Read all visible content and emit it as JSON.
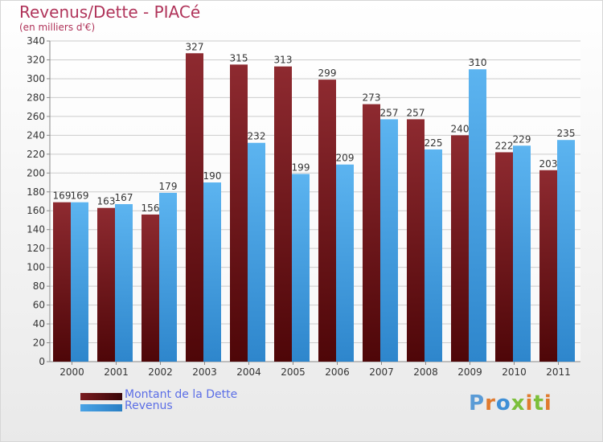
{
  "title": "Revenus/Dette - PIACé",
  "subtitle": "(en milliers d'€)",
  "colors": {
    "dette": "#7a1c20",
    "revenus": "#4aa3e6",
    "title": "#b0345a",
    "legend_text": "#5b6ee6"
  },
  "legend": {
    "dette": "Montant de la Dette",
    "revenus": "Revenus"
  },
  "logo": {
    "letters": [
      "P",
      "r",
      "o",
      "x",
      "i",
      "t",
      "i"
    ],
    "colors": [
      "#5a9bd6",
      "#e07a2e",
      "#3f8fd6",
      "#7cbf3a",
      "#e07a2e",
      "#7cbf3a",
      "#e07a2e"
    ]
  },
  "chart_data": {
    "type": "bar",
    "categories": [
      "2000",
      "2001",
      "2002",
      "2003",
      "2004",
      "2005",
      "2006",
      "2007",
      "2008",
      "2009",
      "2010",
      "2011"
    ],
    "series": [
      {
        "name": "Montant de la Dette",
        "values": [
          169,
          163,
          156,
          327,
          315,
          313,
          299,
          273,
          257,
          240,
          222,
          203
        ]
      },
      {
        "name": "Revenus",
        "values": [
          169,
          167,
          179,
          190,
          232,
          199,
          209,
          257,
          225,
          310,
          229,
          235
        ]
      }
    ],
    "yticks": [
      0,
      20,
      40,
      60,
      80,
      100,
      120,
      140,
      160,
      180,
      200,
      220,
      240,
      260,
      280,
      300,
      320,
      340
    ],
    "ylim": [
      0,
      340
    ],
    "grid": true,
    "legend_position": "bottom-left"
  }
}
